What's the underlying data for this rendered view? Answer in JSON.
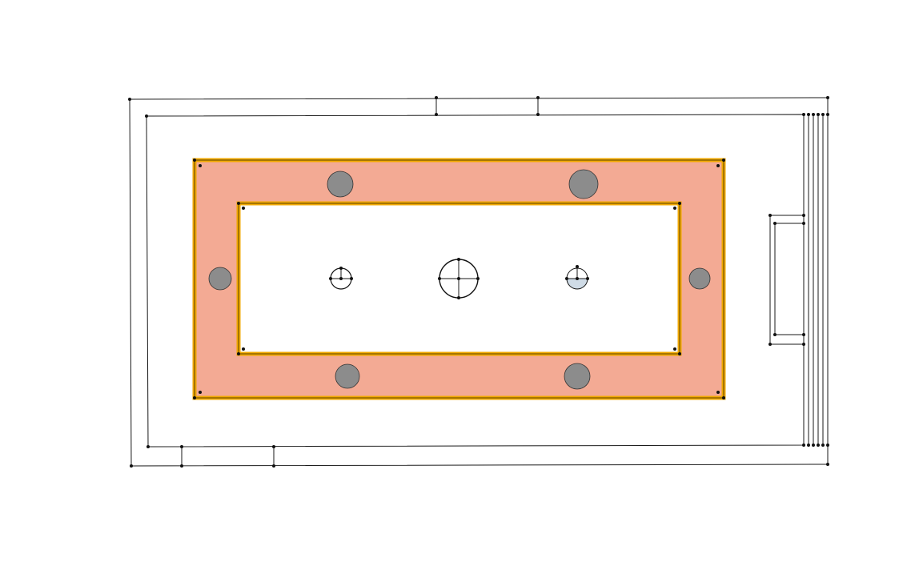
{
  "diagram": {
    "type": "floor-plan",
    "colors": {
      "background": "#ffffff",
      "line": "#1a1a1a",
      "node": "#111111",
      "ring_fill": "#f3aa94",
      "ring_border": "#f0a800",
      "ring_border_stroke": "#3a2a00",
      "post": "#8c8c8c",
      "fixture_fill_light": "#cfdbe6"
    },
    "parts": {
      "outer_wall": "outer-wall",
      "inner_wall": "inner-wall",
      "ring": "hatched-ring",
      "posts": 6,
      "fixtures": 3,
      "door": "side-door"
    }
  }
}
